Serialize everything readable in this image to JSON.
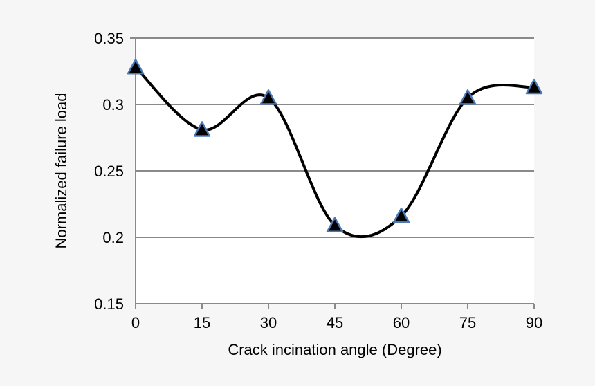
{
  "chart_data": {
    "type": "line",
    "xlabel": "Crack incination angle (Degree)",
    "ylabel": "Normalized failure load",
    "x": [
      0,
      15,
      30,
      45,
      60,
      75,
      90
    ],
    "series": [
      {
        "values": [
          0.328,
          0.281,
          0.305,
          0.209,
          0.216,
          0.305,
          0.313
        ],
        "line_color": "#000000",
        "marker": "triangle",
        "marker_fill": "#000000",
        "marker_stroke": "#4a78b5",
        "smooth": true
      }
    ],
    "xlim": [
      0,
      90
    ],
    "ylim": [
      0.15,
      0.35
    ],
    "x_ticks": [
      "0",
      "15",
      "30",
      "45",
      "60",
      "75",
      "90"
    ],
    "y_ticks": [
      "0.15",
      "0.2",
      "0.25",
      "0.3",
      "0.35"
    ],
    "grid": "horizontal",
    "plot_background": "#ffffff",
    "grid_color": "#8a8a8a"
  }
}
